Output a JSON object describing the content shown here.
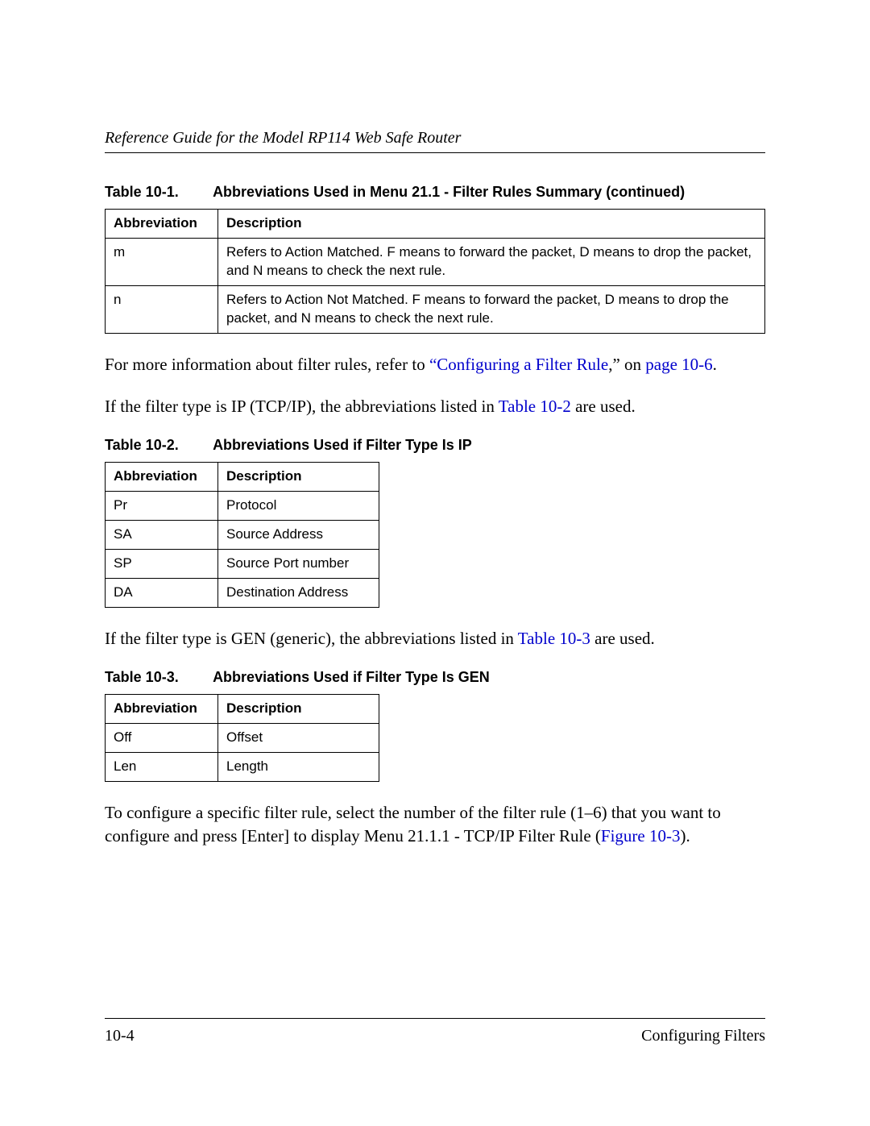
{
  "header": {
    "title": "Reference Guide for the Model RP114 Web Safe Router"
  },
  "table1": {
    "caption_num": "Table 10-1.",
    "caption_title": "Abbreviations Used in Menu 21.1 - Filter Rules Summary (continued)",
    "col1": "Abbreviation",
    "col2": "Description",
    "rows": [
      {
        "abbr": "m",
        "desc": "Refers to Action Matched. F means to forward the packet, D means to drop the packet, and N means to check the next rule."
      },
      {
        "abbr": "n",
        "desc": "Refers to Action Not Matched. F means to forward the packet, D means to drop the packet, and N means to check the next rule."
      }
    ]
  },
  "para1": {
    "pre": "For more information about filter rules, refer to ",
    "link1": "“Configuring a Filter Rule",
    "mid": ",” on ",
    "link2": "page 10-6",
    "post": "."
  },
  "para2": {
    "pre": "If the filter type is IP (TCP/IP), the abbreviations listed in ",
    "link": "Table 10-2",
    "post": " are used."
  },
  "table2": {
    "caption_num": "Table 10-2.",
    "caption_title": "Abbreviations Used if Filter Type Is IP",
    "col1": "Abbreviation",
    "col2": "Description",
    "rows": [
      {
        "abbr": "Pr",
        "desc": "Protocol"
      },
      {
        "abbr": "SA",
        "desc": "Source Address"
      },
      {
        "abbr": "SP",
        "desc": "Source Port number"
      },
      {
        "abbr": "DA",
        "desc": "Destination Address"
      }
    ]
  },
  "para3": {
    "pre": "If the filter type is GEN (generic), the abbreviations listed in ",
    "link": "Table 10-3",
    "post": " are used."
  },
  "table3": {
    "caption_num": "Table 10-3.",
    "caption_title": "Abbreviations Used if Filter Type Is GEN",
    "col1": "Abbreviation",
    "col2": "Description",
    "rows": [
      {
        "abbr": "Off",
        "desc": "Offset"
      },
      {
        "abbr": "Len",
        "desc": "Length"
      }
    ]
  },
  "para4": {
    "pre": "To configure a specific filter rule, select the number of the filter rule (1–6) that you want to configure and press [Enter] to display Menu 21.1.1 - TCP/IP Filter Rule (",
    "link": "Figure 10-3",
    "post": ")."
  },
  "footer": {
    "left": "10-4",
    "right": "Configuring Filters"
  }
}
